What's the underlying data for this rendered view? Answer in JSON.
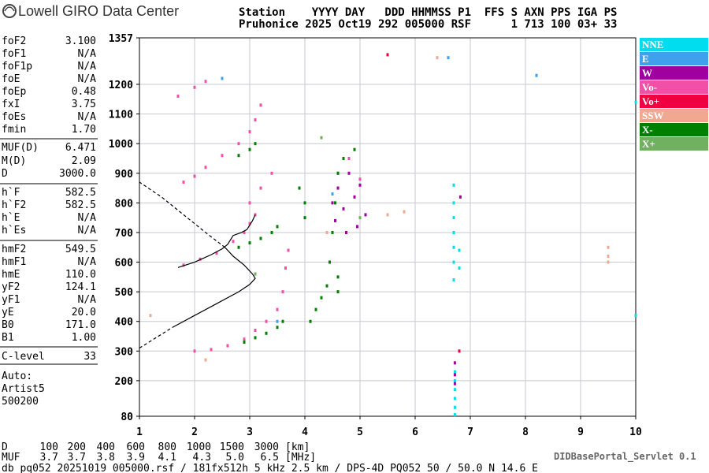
{
  "header": {
    "logo_text": "Lowell GIRO Data Center",
    "line1": "Station    YYYY DAY   DDD HHMMSS P1  FFS S AXN PPS IGA PS",
    "line2": "Pruhonice 2025 Oct19 292 005000 RSF      1 713 100 03+ 33"
  },
  "params": [
    [
      [
        "foF2",
        "3.100"
      ],
      [
        "foF1",
        "N/A"
      ],
      [
        "foF1p",
        "N/A"
      ],
      [
        "foE",
        "N/A"
      ],
      [
        "foEp",
        "0.48"
      ],
      [
        "fxI",
        "3.75"
      ],
      [
        "foEs",
        "N/A"
      ],
      [
        "fmin",
        "1.70"
      ]
    ],
    [
      [
        "MUF(D)",
        "6.471"
      ],
      [
        "M(D)",
        "2.09"
      ],
      [
        "D",
        "3000.0"
      ]
    ],
    [
      [
        "h`F",
        "582.5"
      ],
      [
        "h`F2",
        "582.5"
      ],
      [
        "h`E",
        "N/A"
      ],
      [
        "h`Es",
        "N/A"
      ]
    ],
    [
      [
        "hmF2",
        "549.5"
      ],
      [
        "hmF1",
        "N/A"
      ],
      [
        "hmE",
        "110.0"
      ],
      [
        "yF2",
        "124.1"
      ],
      [
        "yF1",
        "N/A"
      ],
      [
        "yE",
        "20.0"
      ],
      [
        "B0",
        "171.0"
      ],
      [
        "B1",
        "1.00"
      ]
    ],
    [
      [
        "C-level",
        "33"
      ]
    ]
  ],
  "autoscaling": [
    "Auto:",
    "Artist5",
    "500200"
  ],
  "muf_table": {
    "d_label": "D",
    "d_values": [
      "100",
      "200",
      "400",
      "600",
      "800",
      "1000",
      "1500",
      "3000"
    ],
    "d_unit": "[km]",
    "muf_label": "MUF",
    "muf_values": [
      "3.7",
      "3.7",
      "3.8",
      "3.9",
      "4.1",
      "4.3",
      "5.0",
      "6.5"
    ],
    "muf_unit": "[MHz]"
  },
  "footer": {
    "file_info": "db pq052 20251019 005000.rsf / 181fx512h 5 kHz 2.5 km / DPS-4D PQ052 50 / 50.0 N 14.6 E",
    "servlet": "DIDBasePortal_Servlet 0.1"
  },
  "chart_data": {
    "type": "scatter",
    "xlim": [
      1,
      10
    ],
    "xticks": [
      1,
      2,
      3,
      4,
      5,
      6,
      7,
      8,
      9,
      10
    ],
    "ylim": [
      80,
      1357
    ],
    "yticks": [
      80,
      200,
      300,
      400,
      500,
      600,
      700,
      800,
      900,
      1000,
      1100,
      1200,
      1357
    ],
    "grid": true,
    "series": [
      {
        "name": "NNE",
        "color": "#00ddee",
        "x": [
          6.7,
          6.7,
          6.7,
          6.7,
          6.7,
          6.7,
          6.7,
          6.72,
          6.72,
          6.72,
          6.72,
          6.72,
          6.72,
          6.8,
          6.8,
          10,
          10
        ],
        "y": [
          540,
          600,
          650,
          700,
          750,
          800,
          860,
          85,
          110,
          140,
          170,
          200,
          230,
          580,
          640,
          420,
          1140
        ]
      },
      {
        "name": "E",
        "color": "#3fa0ee",
        "x": [
          2.5,
          6.6,
          8.2,
          3.5,
          4.5
        ],
        "y": [
          1220,
          1290,
          1230,
          400,
          830
        ]
      },
      {
        "name": "W",
        "color": "#a000a0",
        "x": [
          4.5,
          4.6,
          4.7,
          4.8,
          4.9,
          5.0,
          5.1,
          4.55,
          4.75,
          4.95,
          6.72,
          6.72,
          6.72,
          6.82
        ],
        "y": [
          800,
          850,
          780,
          900,
          820,
          860,
          760,
          740,
          700,
          720,
          220,
          260,
          190,
          820
        ]
      },
      {
        "name": "Vo-",
        "color": "#f050a8",
        "x": [
          2.0,
          2.3,
          2.6,
          2.9,
          3.1,
          3.3,
          3.5,
          3.6,
          3.65,
          3.7,
          1.8,
          2.1,
          2.4,
          2.7,
          2.9,
          3.0,
          3.1,
          1.8,
          2.0,
          2.2,
          2.5,
          2.8,
          3.0,
          3.1,
          3.2,
          1.7,
          2.0,
          2.2,
          3.0,
          3.2,
          3.4,
          4.6,
          4.8,
          5.0
        ],
        "y": [
          300,
          305,
          318,
          340,
          370,
          400,
          440,
          500,
          580,
          640,
          590,
          610,
          630,
          670,
          700,
          730,
          760,
          870,
          890,
          920,
          960,
          1000,
          1040,
          1080,
          1130,
          1160,
          1190,
          1210,
          800,
          850,
          900,
          900,
          950,
          880
        ]
      },
      {
        "name": "Vo+",
        "color": "#f00040",
        "x": [
          6.8,
          5.5
        ],
        "y": [
          300,
          1300
        ]
      },
      {
        "name": "SSW",
        "color": "#f0a890",
        "x": [
          5.5,
          5.8,
          9.5,
          9.5,
          9.5,
          6.4,
          4.4,
          2.2,
          1.2
        ],
        "y": [
          760,
          770,
          600,
          620,
          650,
          1290,
          700,
          270,
          420
        ]
      },
      {
        "name": "X-",
        "color": "#008000",
        "x": [
          2.9,
          3.1,
          3.3,
          3.5,
          3.6,
          2.8,
          3.0,
          3.2,
          3.4,
          3.5,
          2.8,
          3.0,
          3.1,
          4.1,
          4.2,
          4.3,
          4.4,
          4.45,
          4.5,
          4.55,
          4.6,
          4.7,
          4.9,
          4.6,
          4.6,
          3.9,
          4.0,
          4.0
        ],
        "y": [
          330,
          345,
          360,
          380,
          400,
          650,
          665,
          680,
          700,
          720,
          960,
          980,
          1000,
          400,
          440,
          480,
          520,
          600,
          700,
          800,
          900,
          950,
          980,
          550,
          500,
          850,
          800,
          750
        ]
      },
      {
        "name": "X+",
        "color": "#70b060",
        "x": [
          3.1,
          5.0,
          4.3
        ],
        "y": [
          560,
          750,
          1020
        ]
      }
    ],
    "lines": [
      {
        "color": "#000000",
        "dashed": false,
        "x": [
          1.7,
          2.0,
          2.3,
          2.5,
          2.6,
          2.7,
          2.85,
          2.95,
          3.05,
          3.1
        ],
        "y": [
          582,
          600,
          625,
          645,
          660,
          690,
          700,
          710,
          740,
          760
        ]
      },
      {
        "color": "#000000",
        "dashed": false,
        "x": [
          1.6,
          2.0,
          2.4,
          2.8,
          3.0,
          3.1,
          3.05,
          2.9,
          2.7,
          2.55
        ],
        "y": [
          380,
          420,
          460,
          500,
          525,
          545,
          560,
          590,
          620,
          650
        ]
      },
      {
        "color": "#000000",
        "dashed": true,
        "x": [
          1.0,
          1.3,
          1.6
        ],
        "y": [
          310,
          345,
          380
        ]
      },
      {
        "color": "#000000",
        "dashed": true,
        "x": [
          2.55,
          2.2,
          1.8,
          1.4,
          1.0
        ],
        "y": [
          650,
          700,
          760,
          820,
          870
        ]
      }
    ]
  }
}
